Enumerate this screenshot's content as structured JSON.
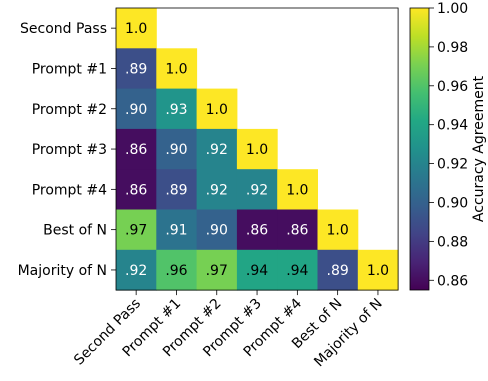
{
  "chart_data": {
    "type": "heatmap",
    "title": "",
    "xlabel": "",
    "ylabel": "",
    "labels": [
      "Second Pass",
      "Prompt #1",
      "Prompt #2",
      "Prompt #3",
      "Prompt #4",
      "Best of N",
      "Majority of N"
    ],
    "matrix": [
      [
        1.0,
        null,
        null,
        null,
        null,
        null,
        null
      ],
      [
        0.89,
        1.0,
        null,
        null,
        null,
        null,
        null
      ],
      [
        0.9,
        0.93,
        1.0,
        null,
        null,
        null,
        null
      ],
      [
        0.86,
        0.9,
        0.92,
        1.0,
        null,
        null,
        null
      ],
      [
        0.86,
        0.89,
        0.92,
        0.92,
        1.0,
        null,
        null
      ],
      [
        0.97,
        0.91,
        0.9,
        0.86,
        0.86,
        1.0,
        null
      ],
      [
        0.92,
        0.96,
        0.97,
        0.94,
        0.94,
        0.89,
        1.0
      ]
    ],
    "cell_labels": [
      [
        "1.0",
        "",
        "",
        "",
        "",
        "",
        ""
      ],
      [
        ".89",
        "1.0",
        "",
        "",
        "",
        "",
        ""
      ],
      [
        ".90",
        ".93",
        "1.0",
        "",
        "",
        "",
        ""
      ],
      [
        ".86",
        ".90",
        ".92",
        "1.0",
        "",
        "",
        ""
      ],
      [
        ".86",
        ".89",
        ".92",
        ".92",
        "1.0",
        "",
        ""
      ],
      [
        ".97",
        ".91",
        ".90",
        ".86",
        ".86",
        "1.0",
        ""
      ],
      [
        ".92",
        ".96",
        ".97",
        ".94",
        ".94",
        ".89",
        "1.0"
      ]
    ],
    "colorbar": {
      "label": "Accuracy Agreement",
      "range": [
        0.855,
        1.0
      ],
      "ticks": [
        0.86,
        0.88,
        0.9,
        0.92,
        0.94,
        0.96,
        0.98,
        1.0
      ],
      "tick_labels": [
        "0.86",
        "0.88",
        "0.90",
        "0.92",
        "0.94",
        "0.96",
        "0.98",
        "1.00"
      ],
      "colormap": "viridis"
    },
    "grid": false
  }
}
